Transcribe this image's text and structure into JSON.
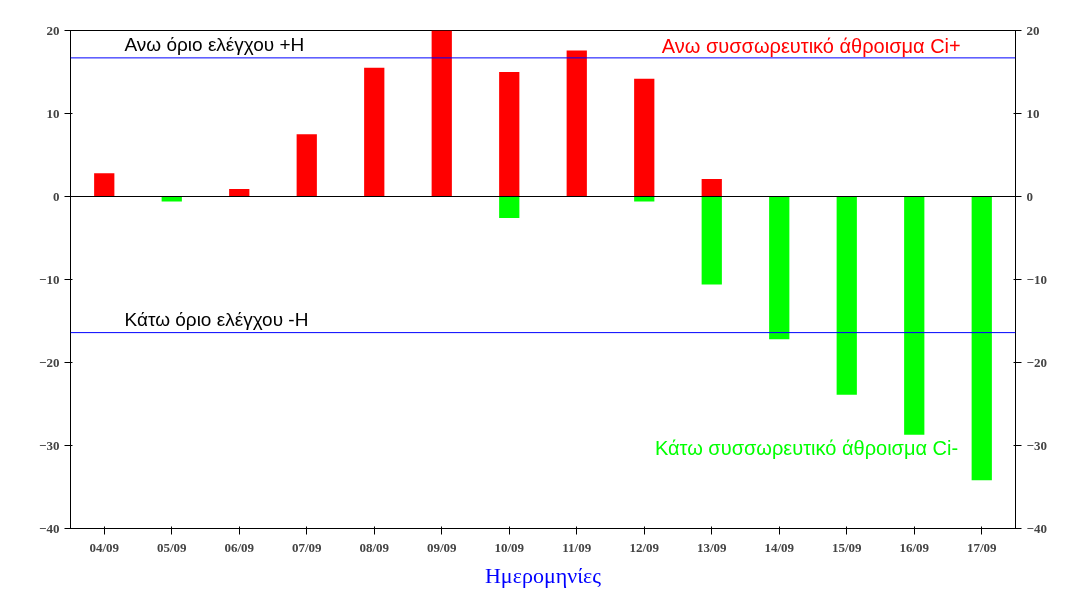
{
  "chart_data": {
    "type": "bar",
    "xlabel": "Ημερομηνίες",
    "categories": [
      "04/09",
      "05/09",
      "06/09",
      "07/09",
      "08/09",
      "09/09",
      "10/09",
      "11/09",
      "12/09",
      "13/09",
      "14/09",
      "15/09",
      "16/09",
      "17/09"
    ],
    "series": [
      {
        "name": "Ανω συσσωρευτικό άθροισμα Ci+",
        "color": "#ff0000",
        "values": [
          2.8,
          0,
          0.9,
          7.5,
          15.5,
          20,
          15,
          17.6,
          14.2,
          2.1,
          0,
          0,
          0,
          0
        ]
      },
      {
        "name": "Κάτω συσσωρευτικό άθροισμα Ci-",
        "color": "#00ff00",
        "values": [
          0,
          -0.6,
          0,
          0,
          0,
          0,
          -2.6,
          0,
          -0.6,
          -10.6,
          -17.2,
          -23.9,
          -28.7,
          -34.2
        ]
      }
    ],
    "ylim": [
      -40,
      20
    ],
    "yticks": [
      -40,
      -30,
      -20,
      -10,
      0,
      10,
      20
    ],
    "y2lim": [
      -40,
      20
    ],
    "y2ticks": [
      -40,
      -30,
      -20,
      -10,
      0,
      10,
      20
    ],
    "ref_lines": [
      {
        "axis": "y",
        "value": 0,
        "color": "#000000"
      },
      {
        "axis": "y",
        "value": 16.7,
        "label": "Ανω όριο ελέγχου +H",
        "color": "#0000ff"
      },
      {
        "axis": "y",
        "value": -16.4,
        "label": "Κάτω όριο ελέγχου -H",
        "color": "#0000ff"
      }
    ],
    "grid": false,
    "legend": false
  }
}
